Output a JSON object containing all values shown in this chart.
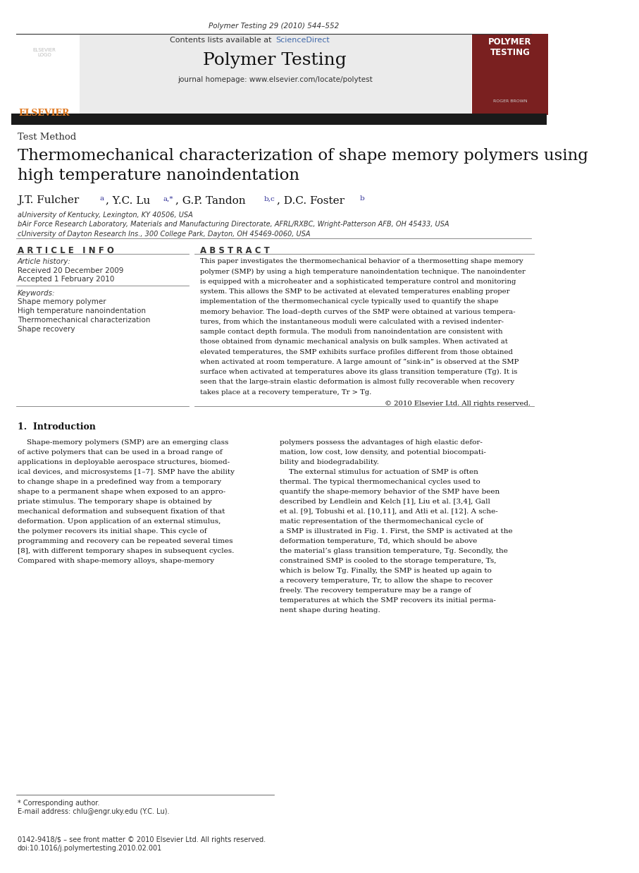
{
  "page_width": 9.07,
  "page_height": 12.38,
  "bg_color": "#ffffff",
  "journal_ref": "Polymer Testing 29 (2010) 544–552",
  "sciencedirect_color": "#4169aa",
  "journal_title": "Polymer Testing",
  "journal_homepage": "journal homepage: www.elsevier.com/locate/polytest",
  "sidebar_bg": "#7a2020",
  "section_label": "Test Method",
  "paper_title": "Thermomechanical characterization of shape memory polymers using\nhigh temperature nanoindentation",
  "affil1": "aUniversity of Kentucky, Lexington, KY 40506, USA",
  "affil2": "bAir Force Research Laboratory, Materials and Manufacturing Directorate, AFRL/RXBC, Wright-Patterson AFB, OH 45433, USA",
  "affil3": "cUniversity of Dayton Research Ins., 300 College Park, Dayton, OH 45469-0060, USA",
  "article_info_title": "A R T I C L E   I N F O",
  "abstract_title": "A B S T R A C T",
  "article_history_label": "Article history:",
  "received": "Received 20 December 2009",
  "accepted": "Accepted 1 February 2010",
  "keywords_label": "Keywords:",
  "keywords": [
    "Shape memory polymer",
    "High temperature nanoindentation",
    "Thermomechanical characterization",
    "Shape recovery"
  ],
  "copyright": "© 2010 Elsevier Ltd. All rights reserved.",
  "intro_title": "1.  Introduction",
  "footer_note": "* Corresponding author.",
  "footer_email": "E-mail address: chlu@engr.uky.edu (Y.C. Lu).",
  "footer_issn": "0142-9418/$ – see front matter © 2010 Elsevier Ltd. All rights reserved.",
  "footer_doi": "doi:10.1016/j.polymertesting.2010.02.001",
  "elsevier_color": "#e07820",
  "dark_bar_color": "#1a1a1a"
}
